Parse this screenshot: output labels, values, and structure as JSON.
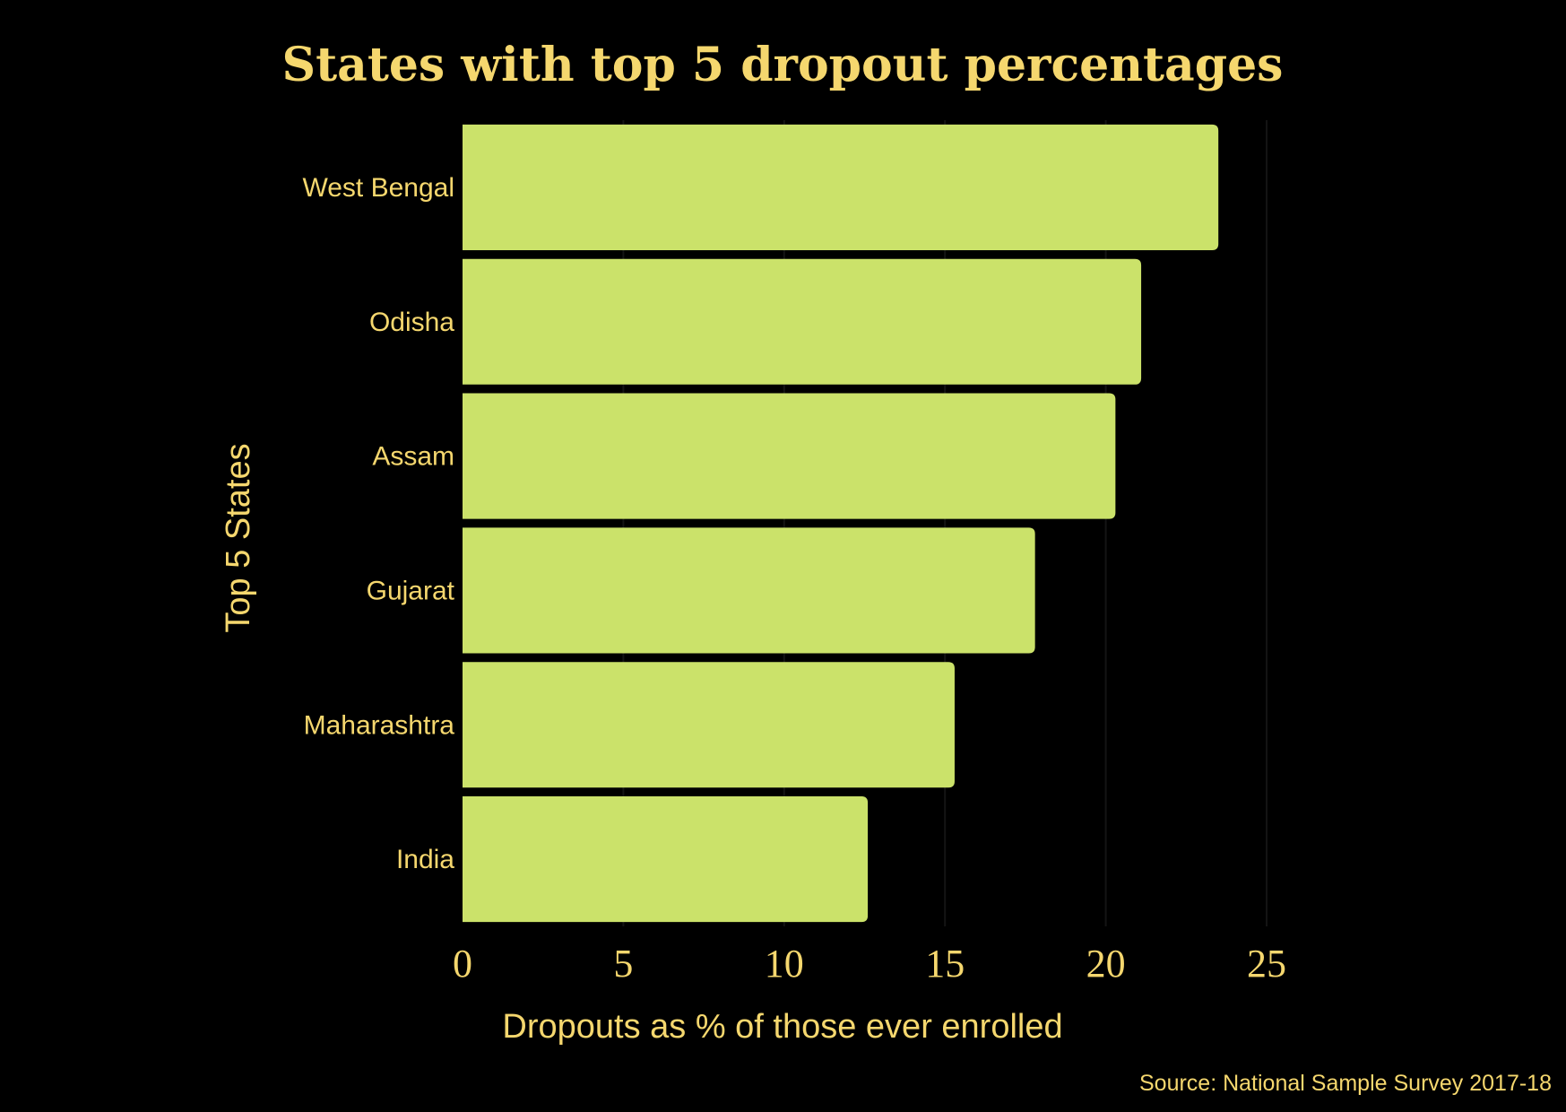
{
  "chart_data": {
    "type": "bar",
    "orientation": "horizontal",
    "title": "States with top 5 dropout percentages",
    "xlabel": "Dropouts as % of those ever enrolled",
    "ylabel": "Top 5 States",
    "source": "Source: National Sample Survey 2017-18",
    "categories": [
      "West Bengal",
      "Odisha",
      "Assam",
      "Gujarat",
      "Maharashtra",
      "India"
    ],
    "values": [
      23.5,
      21.1,
      20.3,
      17.8,
      15.3,
      12.6
    ],
    "xlim": [
      0,
      25
    ],
    "xticks": [
      "0",
      "5",
      "10",
      "15",
      "20",
      "25"
    ],
    "grid": "vertical",
    "legend": "none",
    "colors": {
      "bar": "#cbe26a",
      "text": "#f5d76e",
      "background": "#000000",
      "grid": "#141414"
    }
  }
}
